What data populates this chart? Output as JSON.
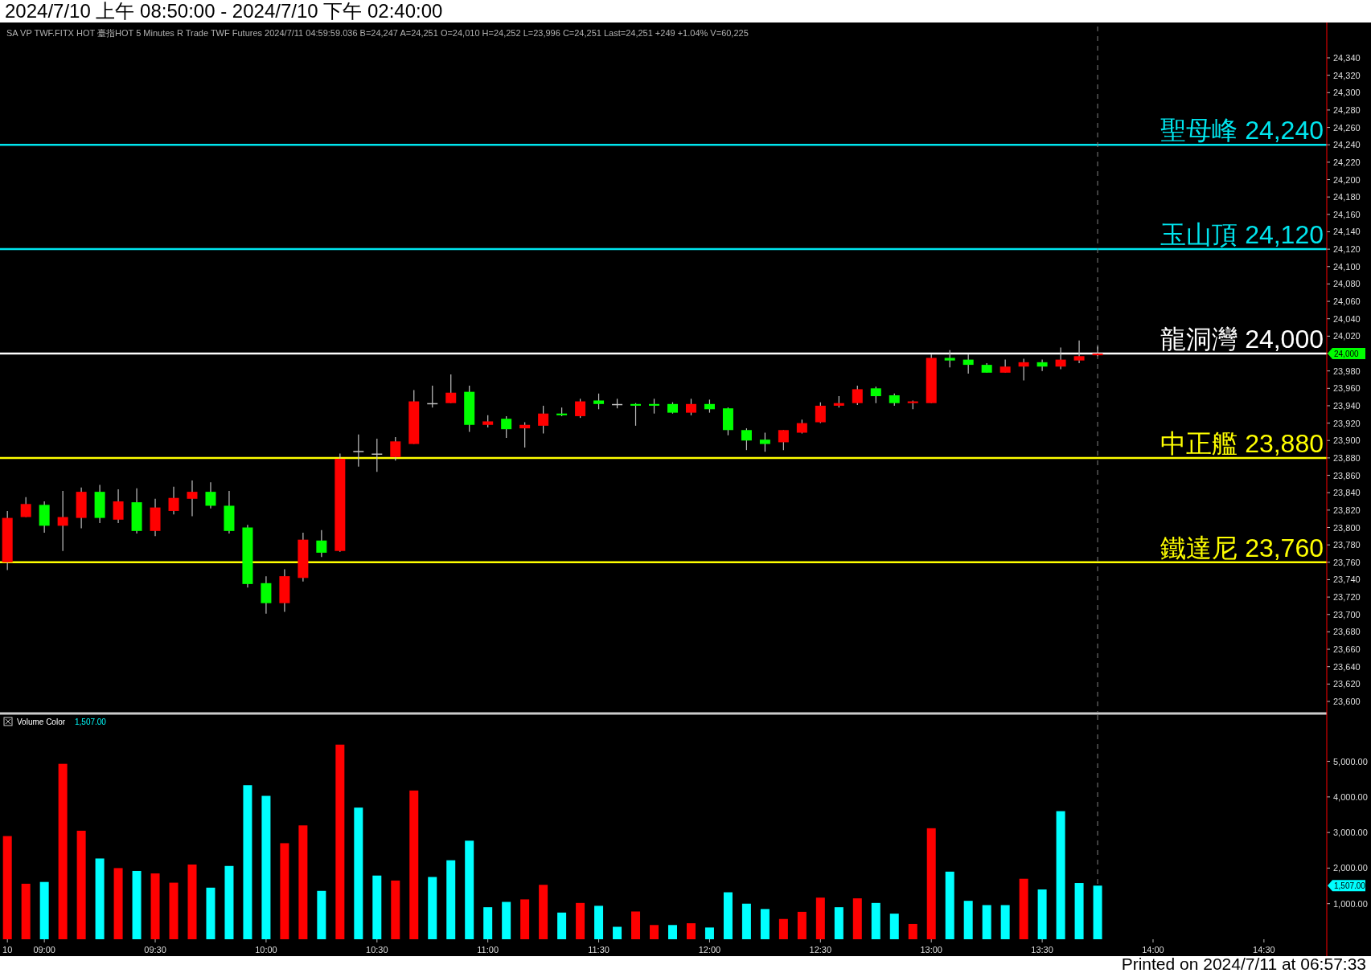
{
  "chart_data": [
    {
      "type": "candlestick",
      "title": "2024/7/10 上午 08:50:00 - 2024/7/10 下午 02:40:00",
      "subtitle": "SA VP TWF.FITX HOT 臺指HOT 5 Minutes R Trade TWF Futures 2024/7/11 04:59:59.036 B=24,247 A=24,251 O=24,010 H=24,252 L=23,996 C=24,251 Last=24,251 +249 +1.04% V=60,225",
      "x": [
        "2024-07-10T08:50",
        "2024-07-10T08:55",
        "2024-07-10T09:00",
        "2024-07-10T09:05",
        "2024-07-10T09:10",
        "2024-07-10T09:15",
        "2024-07-10T09:20",
        "2024-07-10T09:25",
        "2024-07-10T09:30",
        "2024-07-10T09:35",
        "2024-07-10T09:40",
        "2024-07-10T09:45",
        "2024-07-10T09:50",
        "2024-07-10T09:55",
        "2024-07-10T10:00",
        "2024-07-10T10:05",
        "2024-07-10T10:10",
        "2024-07-10T10:15",
        "2024-07-10T10:20",
        "2024-07-10T10:25",
        "2024-07-10T10:30",
        "2024-07-10T10:35",
        "2024-07-10T10:40",
        "2024-07-10T10:45",
        "2024-07-10T10:50",
        "2024-07-10T10:55",
        "2024-07-10T11:00",
        "2024-07-10T11:05",
        "2024-07-10T11:10",
        "2024-07-10T11:15",
        "2024-07-10T11:20",
        "2024-07-10T11:25",
        "2024-07-10T11:30",
        "2024-07-10T11:35",
        "2024-07-10T11:40",
        "2024-07-10T11:45",
        "2024-07-10T11:50",
        "2024-07-10T11:55",
        "2024-07-10T12:00",
        "2024-07-10T12:05",
        "2024-07-10T12:10",
        "2024-07-10T12:15",
        "2024-07-10T12:20",
        "2024-07-10T12:25",
        "2024-07-10T12:30",
        "2024-07-10T12:35",
        "2024-07-10T12:40",
        "2024-07-10T12:45",
        "2024-07-10T12:50",
        "2024-07-10T12:55",
        "2024-07-10T13:00",
        "2024-07-10T13:05",
        "2024-07-10T13:10",
        "2024-07-10T13:15",
        "2024-07-10T13:20",
        "2024-07-10T13:25",
        "2024-07-10T13:30",
        "2024-07-10T13:35",
        "2024-07-10T13:40",
        "2024-07-10T13:45"
      ],
      "ohlc": [
        [
          23760,
          23819,
          23751,
          23811
        ],
        [
          23812,
          23835,
          23812,
          23827
        ],
        [
          23826,
          23830,
          23794,
          23802
        ],
        [
          23802,
          23842,
          23773,
          23812
        ],
        [
          23811,
          23846,
          23799,
          23841
        ],
        [
          23841,
          23849,
          23805,
          23811
        ],
        [
          23809,
          23844,
          23805,
          23830
        ],
        [
          23829,
          23845,
          23793,
          23796
        ],
        [
          23796,
          23833,
          23790,
          23823
        ],
        [
          23819,
          23847,
          23815,
          23834
        ],
        [
          23833,
          23854,
          23813,
          23841
        ],
        [
          23841,
          23852,
          23822,
          23825
        ],
        [
          23825,
          23842,
          23793,
          23796
        ],
        [
          23800,
          23803,
          23731,
          23735
        ],
        [
          23736,
          23744,
          23701,
          23713
        ],
        [
          23713,
          23752,
          23703,
          23744
        ],
        [
          23742,
          23794,
          23738,
          23786
        ],
        [
          23785,
          23797,
          23766,
          23771
        ],
        [
          23773,
          23885,
          23772,
          23879
        ],
        [
          23888,
          23907,
          23870,
          23888
        ],
        [
          23885,
          23902,
          23864,
          23885
        ],
        [
          23881,
          23904,
          23877,
          23899
        ],
        [
          23896,
          23958,
          23896,
          23945
        ],
        [
          23943,
          23963,
          23938,
          23943
        ],
        [
          23943,
          23976,
          23943,
          23955
        ],
        [
          23956,
          23963,
          23910,
          23918
        ],
        [
          23918,
          23929,
          23915,
          23922
        ],
        [
          23925,
          23928,
          23903,
          23913
        ],
        [
          23914,
          23921,
          23892,
          23918
        ],
        [
          23917,
          23940,
          23908,
          23931
        ],
        [
          23931,
          23938,
          23928,
          23929
        ],
        [
          23928,
          23948,
          23926,
          23945
        ],
        [
          23946,
          23954,
          23936,
          23942
        ],
        [
          23942,
          23948,
          23937,
          23942
        ],
        [
          23942,
          23943,
          23917,
          23940
        ],
        [
          23942,
          23948,
          23931,
          23940
        ],
        [
          23942,
          23944,
          23931,
          23932
        ],
        [
          23932,
          23948,
          23929,
          23942
        ],
        [
          23942,
          23947,
          23932,
          23936
        ],
        [
          23937,
          23938,
          23906,
          23912
        ],
        [
          23912,
          23914,
          23889,
          23900
        ],
        [
          23901,
          23909,
          23887,
          23896
        ],
        [
          23898,
          23912,
          23889,
          23912
        ],
        [
          23909,
          23924,
          23908,
          23920
        ],
        [
          23921,
          23944,
          23920,
          23940
        ],
        [
          23940,
          23951,
          23938,
          23943
        ],
        [
          23943,
          23963,
          23941,
          23959
        ],
        [
          23960,
          23962,
          23943,
          23951
        ],
        [
          23952,
          23954,
          23940,
          23943
        ],
        [
          23943,
          23946,
          23936,
          23945
        ],
        [
          23943,
          23999,
          23943,
          23995
        ],
        [
          23995,
          24004,
          23984,
          23992
        ],
        [
          23993,
          23999,
          23977,
          23987
        ],
        [
          23987,
          23989,
          23978,
          23978
        ],
        [
          23978,
          23993,
          23978,
          23985
        ],
        [
          23985,
          23994,
          23969,
          23990
        ],
        [
          23990,
          23993,
          23980,
          23985
        ],
        [
          23985,
          24007,
          23982,
          23993
        ],
        [
          23992,
          24015,
          23989,
          23997
        ],
        [
          23998,
          24008,
          23997,
          24000
        ]
      ],
      "colors": [
        "#ff0000",
        "#ff0000",
        "#00ff00",
        "#ff0000",
        "#ff0000",
        "#00ff00",
        "#ff0000",
        "#00ff00",
        "#ff0000",
        "#ff0000",
        "#ff0000",
        "#00ff00",
        "#00ff00",
        "#00ff00",
        "#00ff00",
        "#ff0000",
        "#ff0000",
        "#00ff00",
        "#ff0000",
        "#c0c0c0",
        "#c0c0c0",
        "#ff0000",
        "#ff0000",
        "#c0c0c0",
        "#ff0000",
        "#00ff00",
        "#ff0000",
        "#00ff00",
        "#ff0000",
        "#ff0000",
        "#00ff00",
        "#ff0000",
        "#00ff00",
        "#c0c0c0",
        "#00ff00",
        "#00ff00",
        "#00ff00",
        "#ff0000",
        "#00ff00",
        "#00ff00",
        "#00ff00",
        "#00ff00",
        "#ff0000",
        "#ff0000",
        "#ff0000",
        "#ff0000",
        "#ff0000",
        "#00ff00",
        "#00ff00",
        "#ff0000",
        "#ff0000",
        "#00ff00",
        "#00ff00",
        "#00ff00",
        "#ff0000",
        "#ff0000",
        "#00ff00",
        "#ff0000",
        "#ff0000",
        "#ff0000"
      ],
      "xlim": [
        "2024-07-10T08:48",
        "2024-07-10T14:47"
      ],
      "ylim": [
        23588,
        24376
      ],
      "yticks": [
        {
          "value": 23600,
          "label": "23,600"
        },
        {
          "value": 23620,
          "label": "23,620"
        },
        {
          "value": 23640,
          "label": "23,640"
        },
        {
          "value": 23660,
          "label": "23,660"
        },
        {
          "value": 23680,
          "label": "23,680"
        },
        {
          "value": 23700,
          "label": "23,700"
        },
        {
          "value": 23720,
          "label": "23,720"
        },
        {
          "value": 23740,
          "label": "23,740"
        },
        {
          "value": 23760,
          "label": "23,760"
        },
        {
          "value": 23780,
          "label": "23,780"
        },
        {
          "value": 23800,
          "label": "23,800"
        },
        {
          "value": 23820,
          "label": "23,820"
        },
        {
          "value": 23840,
          "label": "23,840"
        },
        {
          "value": 23860,
          "label": "23,860"
        },
        {
          "value": 23880,
          "label": "23,880"
        },
        {
          "value": 23900,
          "label": "23,900"
        },
        {
          "value": 23920,
          "label": "23,920"
        },
        {
          "value": 23940,
          "label": "23,940"
        },
        {
          "value": 23960,
          "label": "23,960"
        },
        {
          "value": 23980,
          "label": "23,980"
        },
        {
          "value": 24000,
          "label": null
        },
        {
          "value": 24020,
          "label": "24,020"
        },
        {
          "value": 24040,
          "label": "24,040"
        },
        {
          "value": 24060,
          "label": "24,060"
        },
        {
          "value": 24080,
          "label": "24,080"
        },
        {
          "value": 24100,
          "label": "24,100"
        },
        {
          "value": 24120,
          "label": "24,120"
        },
        {
          "value": 24140,
          "label": "24,140"
        },
        {
          "value": 24160,
          "label": "24,160"
        },
        {
          "value": 24180,
          "label": "24,180"
        },
        {
          "value": 24200,
          "label": "24,200"
        },
        {
          "value": 24220,
          "label": "24,220"
        },
        {
          "value": 24240,
          "label": "24,240"
        },
        {
          "value": 24260,
          "label": "24,260"
        },
        {
          "value": 24280,
          "label": "24,280"
        },
        {
          "value": 24300,
          "label": "24,300"
        },
        {
          "value": 24320,
          "label": "24,320"
        },
        {
          "value": 24340,
          "label": "24,340"
        }
      ],
      "tick_labels": "y",
      "ref_lines": [
        {
          "axis": "y",
          "value": 24240,
          "label": "聖母峰 24,240",
          "color": "#00e5ee"
        },
        {
          "axis": "y",
          "value": 24120,
          "label": "玉山頂 24,120",
          "color": "#00e5ee"
        },
        {
          "axis": "y",
          "value": 24000,
          "label": "龍洞灣 24,000",
          "color": "#ffffff"
        },
        {
          "axis": "y",
          "value": 23880,
          "label": "中正艦 23,880",
          "color": "#ffff00"
        },
        {
          "axis": "y",
          "value": 23760,
          "label": "鐵達尼 23,760",
          "color": "#ffff00"
        },
        {
          "axis": "x",
          "value": "2024-07-10T13:45",
          "color": "#808080",
          "line_style": "dashed"
        }
      ],
      "annotations": [
        "24,000"
      ]
    },
    {
      "type": "bar",
      "x": [
        "2024-07-10T08:50",
        "2024-07-10T08:55",
        "2024-07-10T09:00",
        "2024-07-10T09:05",
        "2024-07-10T09:10",
        "2024-07-10T09:15",
        "2024-07-10T09:20",
        "2024-07-10T09:25",
        "2024-07-10T09:30",
        "2024-07-10T09:35",
        "2024-07-10T09:40",
        "2024-07-10T09:45",
        "2024-07-10T09:50",
        "2024-07-10T09:55",
        "2024-07-10T10:00",
        "2024-07-10T10:05",
        "2024-07-10T10:10",
        "2024-07-10T10:15",
        "2024-07-10T10:20",
        "2024-07-10T10:25",
        "2024-07-10T10:30",
        "2024-07-10T10:35",
        "2024-07-10T10:40",
        "2024-07-10T10:45",
        "2024-07-10T10:50",
        "2024-07-10T10:55",
        "2024-07-10T11:00",
        "2024-07-10T11:05",
        "2024-07-10T11:10",
        "2024-07-10T11:15",
        "2024-07-10T11:20",
        "2024-07-10T11:25",
        "2024-07-10T11:30",
        "2024-07-10T11:35",
        "2024-07-10T11:40",
        "2024-07-10T11:45",
        "2024-07-10T11:50",
        "2024-07-10T11:55",
        "2024-07-10T12:00",
        "2024-07-10T12:05",
        "2024-07-10T12:10",
        "2024-07-10T12:15",
        "2024-07-10T12:20",
        "2024-07-10T12:25",
        "2024-07-10T12:30",
        "2024-07-10T12:35",
        "2024-07-10T12:40",
        "2024-07-10T12:45",
        "2024-07-10T12:50",
        "2024-07-10T12:55",
        "2024-07-10T13:00",
        "2024-07-10T13:05",
        "2024-07-10T13:10",
        "2024-07-10T13:15",
        "2024-07-10T13:20",
        "2024-07-10T13:25",
        "2024-07-10T13:30",
        "2024-07-10T13:35",
        "2024-07-10T13:40",
        "2024-07-10T13:45"
      ],
      "series": [
        {
          "name": "Volume Color",
          "values": [
            2900,
            1560,
            1610,
            4930,
            3050,
            2270,
            2000,
            1920,
            1850,
            1590,
            2100,
            1450,
            2060,
            4330,
            4030,
            2700,
            3200,
            1360,
            5470,
            3700,
            1790,
            1650,
            4180,
            1750,
            2220,
            2770,
            900,
            1050,
            1120,
            1530,
            750,
            1020,
            940,
            350,
            780,
            400,
            400,
            450,
            330,
            1320,
            1000,
            850,
            570,
            770,
            1170,
            900,
            1150,
            1020,
            720,
            430,
            3120,
            1900,
            1080,
            960,
            960,
            1700,
            1400,
            3600,
            1580,
            1507
          ],
          "colors": [
            "#ff0000",
            "#ff0000",
            "#00ffff",
            "#ff0000",
            "#ff0000",
            "#00ffff",
            "#ff0000",
            "#00ffff",
            "#ff0000",
            "#ff0000",
            "#ff0000",
            "#00ffff",
            "#00ffff",
            "#00ffff",
            "#00ffff",
            "#ff0000",
            "#ff0000",
            "#00ffff",
            "#ff0000",
            "#00ffff",
            "#00ffff",
            "#ff0000",
            "#ff0000",
            "#00ffff",
            "#00ffff",
            "#00ffff",
            "#00ffff",
            "#00ffff",
            "#ff0000",
            "#ff0000",
            "#00ffff",
            "#ff0000",
            "#00ffff",
            "#00ffff",
            "#ff0000",
            "#ff0000",
            "#00ffff",
            "#ff0000",
            "#00ffff",
            "#00ffff",
            "#00ffff",
            "#00ffff",
            "#ff0000",
            "#ff0000",
            "#ff0000",
            "#00ffff",
            "#ff0000",
            "#00ffff",
            "#00ffff",
            "#ff0000",
            "#ff0000",
            "#00ffff",
            "#00ffff",
            "#00ffff",
            "#00ffff",
            "#ff0000",
            "#00ffff",
            "#00ffff",
            "#00ffff",
            "#00ffff"
          ]
        }
      ],
      "xlim": [
        "2024-07-10T08:48",
        "2024-07-10T14:47"
      ],
      "xticks": [
        {
          "value": "2024-07-10T08:50",
          "label": "10"
        },
        {
          "value": "2024-07-10T09:00",
          "label": "09:00"
        },
        {
          "value": "2024-07-10T09:30",
          "label": "09:30"
        },
        {
          "value": "2024-07-10T10:00",
          "label": "10:00"
        },
        {
          "value": "2024-07-10T10:30",
          "label": "10:30"
        },
        {
          "value": "2024-07-10T11:00",
          "label": "11:00"
        },
        {
          "value": "2024-07-10T11:30",
          "label": "11:30"
        },
        {
          "value": "2024-07-10T12:00",
          "label": "12:00"
        },
        {
          "value": "2024-07-10T12:30",
          "label": "12:30"
        },
        {
          "value": "2024-07-10T13:00",
          "label": "13:00"
        },
        {
          "value": "2024-07-10T13:30",
          "label": "13:30"
        },
        {
          "value": "2024-07-10T14:00",
          "label": "14:00"
        },
        {
          "value": "2024-07-10T14:30",
          "label": "14:30"
        }
      ],
      "ylim": [
        0,
        6300
      ],
      "yticks": [
        {
          "value": 1000,
          "label": "1,000.00"
        },
        {
          "value": 2000,
          "label": "2,000.00"
        },
        {
          "value": 3000,
          "label": "3,000.00"
        },
        {
          "value": 4000,
          "label": "4,000.00"
        },
        {
          "value": 5000,
          "label": "5,000.00"
        }
      ],
      "legend": "top left",
      "ref_lines": [
        {
          "axis": "x",
          "value": "2024-07-10T13:45",
          "color": "#808080",
          "line_style": "dashed"
        }
      ],
      "annotations": [
        "1,507.00",
        "1,507.00",
        "Printed on 2024/7/11 at 06:57:33"
      ]
    }
  ]
}
